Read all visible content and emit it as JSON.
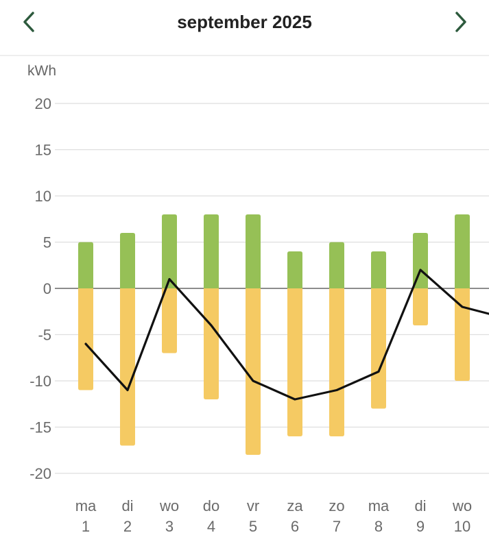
{
  "header": {
    "title": "september 2025",
    "prev_icon": "chevron-left-icon",
    "next_icon": "chevron-right-icon",
    "icon_color": "#2d5a3d"
  },
  "chart_data": {
    "type": "bar",
    "title": "",
    "ylabel": "kWh",
    "xlabel": "",
    "ylim": [
      -20,
      20
    ],
    "yticks": [
      20,
      15,
      10,
      5,
      0,
      -5,
      -10,
      -15,
      -20
    ],
    "grid": true,
    "categories": [
      "1",
      "2",
      "3",
      "4",
      "5",
      "6",
      "7",
      "8",
      "9",
      "10"
    ],
    "weekdays": [
      "ma",
      "di",
      "wo",
      "do",
      "vr",
      "za",
      "zo",
      "ma",
      "di",
      "wo"
    ],
    "series": [
      {
        "type": "bar",
        "color": "#96c056",
        "values": [
          5,
          6,
          8,
          8,
          8,
          4,
          5,
          4,
          6,
          8
        ]
      },
      {
        "type": "bar",
        "color": "#f5ca63",
        "values": [
          -11,
          -17,
          -7,
          -12,
          -18,
          -16,
          -16,
          -13,
          -4,
          -10
        ]
      },
      {
        "type": "line",
        "color": "#111111",
        "values": [
          -6,
          -11,
          1,
          -4,
          -10,
          -12,
          -11,
          -9,
          2,
          -2
        ]
      }
    ]
  }
}
